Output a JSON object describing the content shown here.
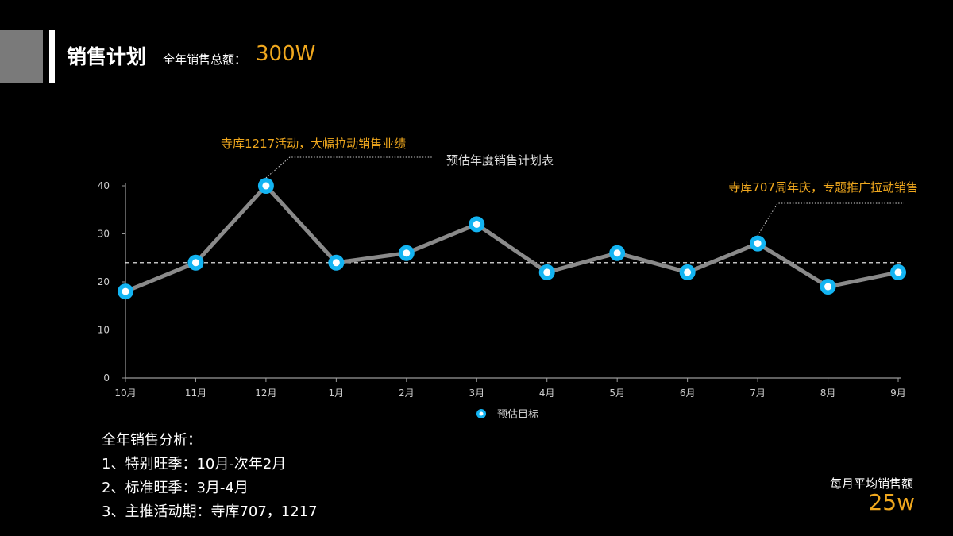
{
  "header": {
    "title": "销售计划",
    "subtitle_label": "全年销售总额：",
    "subtitle_value": "300W"
  },
  "colors": {
    "accent": "#f0a81e",
    "line": "#8a8a8a",
    "marker": "#13b4f2",
    "axis": "#9a9a9a",
    "text": "#ffffff"
  },
  "chart_data": {
    "type": "line",
    "title": "预估年度销售计划表",
    "categories": [
      "10月",
      "11月",
      "12月",
      "1月",
      "2月",
      "3月",
      "4月",
      "5月",
      "6月",
      "7月",
      "8月",
      "9月"
    ],
    "series": [
      {
        "name": "预估目标",
        "values": [
          18,
          24,
          40,
          24,
          26,
          32,
          22,
          26,
          22,
          28,
          19,
          22
        ]
      }
    ],
    "yticks": [
      0,
      10,
      20,
      30,
      40
    ],
    "ylim": [
      0,
      40
    ],
    "reference_line": 24,
    "annotations": [
      {
        "text": "寺库1217活动，大幅拉动销售业绩",
        "category": "12月"
      },
      {
        "text": "寺库707周年庆，专题推广拉动销售",
        "category": "7月"
      }
    ],
    "legend_position": "bottom-center"
  },
  "analysis": {
    "heading": "全年销售分析：",
    "items": [
      "1、特别旺季：10月-次年2月",
      "2、标准旺季：3月-4月",
      "3、主推活动期：寺库707，1217"
    ]
  },
  "average": {
    "label": "每月平均销售额",
    "value": "25w"
  }
}
